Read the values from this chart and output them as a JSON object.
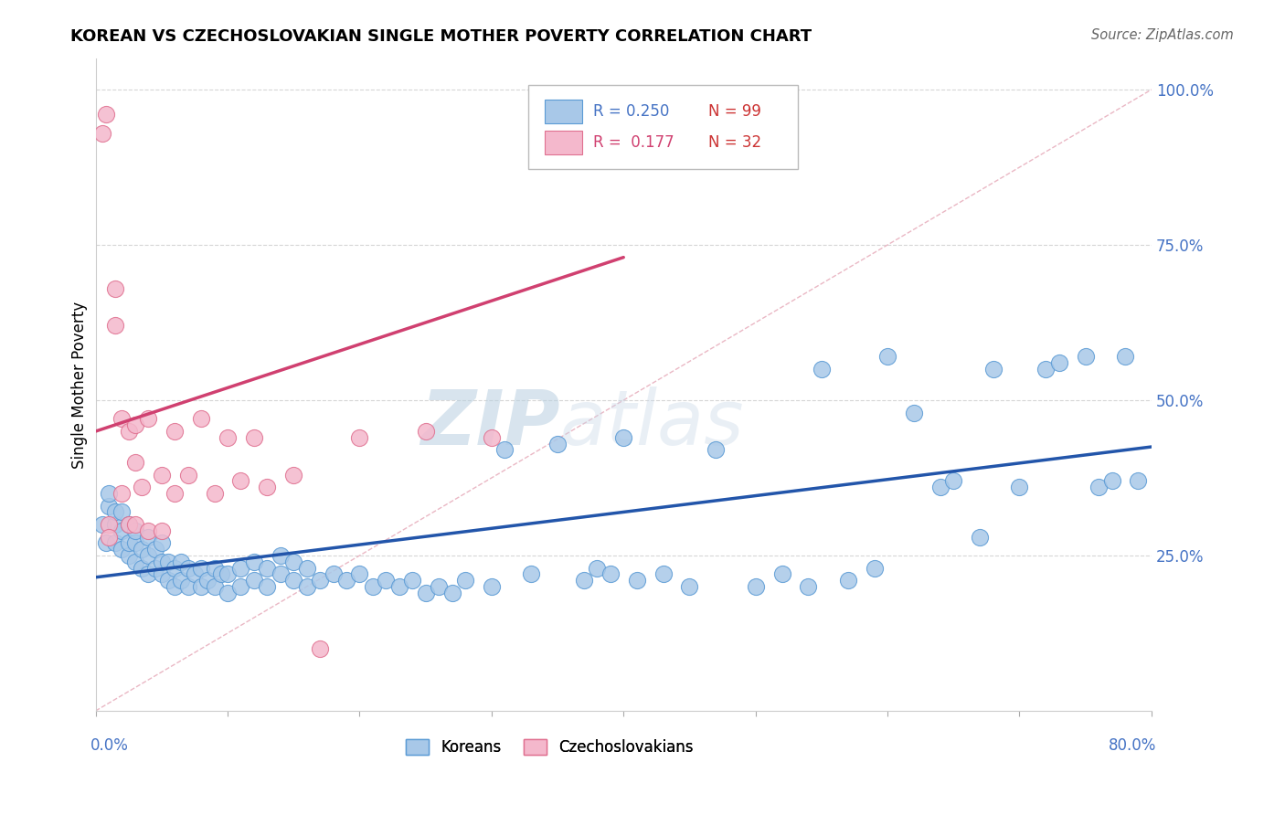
{
  "title": "KOREAN VS CZECHOSLOVAKIAN SINGLE MOTHER POVERTY CORRELATION CHART",
  "source": "Source: ZipAtlas.com",
  "ylabel": "Single Mother Poverty",
  "x_range": [
    0.0,
    0.8
  ],
  "y_range": [
    0.0,
    1.05
  ],
  "watermark_zip": "ZIP",
  "watermark_atlas": "atlas",
  "legend": {
    "korean_R": "0.250",
    "korean_N": "99",
    "czech_R": "0.177",
    "czech_N": "32",
    "korean_label": "Koreans",
    "czech_label": "Czechoslovakians"
  },
  "korean_color": "#a8c8e8",
  "korean_edge": "#5b9bd5",
  "czech_color": "#f4b8cc",
  "czech_edge": "#e07090",
  "diag_line_color": "#e8b0be",
  "korean_trend_color": "#2255aa",
  "czech_trend_color": "#d04070",
  "grid_color": "#cccccc",
  "y_tick_vals": [
    0.25,
    0.5,
    0.75,
    1.0
  ],
  "y_tick_labels": [
    "25.0%",
    "50.0%",
    "75.0%",
    "100.0%"
  ],
  "korean_x": [
    0.005,
    0.008,
    0.01,
    0.01,
    0.015,
    0.015,
    0.015,
    0.02,
    0.02,
    0.02,
    0.025,
    0.025,
    0.025,
    0.03,
    0.03,
    0.03,
    0.035,
    0.035,
    0.04,
    0.04,
    0.04,
    0.045,
    0.045,
    0.05,
    0.05,
    0.05,
    0.055,
    0.055,
    0.06,
    0.06,
    0.065,
    0.065,
    0.07,
    0.07,
    0.075,
    0.08,
    0.08,
    0.085,
    0.09,
    0.09,
    0.095,
    0.1,
    0.1,
    0.11,
    0.11,
    0.12,
    0.12,
    0.13,
    0.13,
    0.14,
    0.14,
    0.15,
    0.15,
    0.16,
    0.16,
    0.17,
    0.18,
    0.19,
    0.2,
    0.21,
    0.22,
    0.23,
    0.24,
    0.25,
    0.26,
    0.27,
    0.28,
    0.3,
    0.31,
    0.33,
    0.35,
    0.37,
    0.38,
    0.39,
    0.4,
    0.41,
    0.43,
    0.45,
    0.47,
    0.5,
    0.52,
    0.54,
    0.55,
    0.57,
    0.59,
    0.6,
    0.62,
    0.64,
    0.65,
    0.67,
    0.68,
    0.7,
    0.72,
    0.73,
    0.75,
    0.76,
    0.77,
    0.78,
    0.79
  ],
  "korean_y": [
    0.3,
    0.27,
    0.33,
    0.35,
    0.27,
    0.3,
    0.32,
    0.26,
    0.29,
    0.32,
    0.25,
    0.27,
    0.3,
    0.24,
    0.27,
    0.29,
    0.23,
    0.26,
    0.22,
    0.25,
    0.28,
    0.23,
    0.26,
    0.22,
    0.24,
    0.27,
    0.21,
    0.24,
    0.2,
    0.23,
    0.21,
    0.24,
    0.2,
    0.23,
    0.22,
    0.2,
    0.23,
    0.21,
    0.2,
    0.23,
    0.22,
    0.19,
    0.22,
    0.2,
    0.23,
    0.21,
    0.24,
    0.2,
    0.23,
    0.22,
    0.25,
    0.21,
    0.24,
    0.2,
    0.23,
    0.21,
    0.22,
    0.21,
    0.22,
    0.2,
    0.21,
    0.2,
    0.21,
    0.19,
    0.2,
    0.19,
    0.21,
    0.2,
    0.42,
    0.22,
    0.43,
    0.21,
    0.23,
    0.22,
    0.44,
    0.21,
    0.22,
    0.2,
    0.42,
    0.2,
    0.22,
    0.2,
    0.55,
    0.21,
    0.23,
    0.57,
    0.48,
    0.36,
    0.37,
    0.28,
    0.55,
    0.36,
    0.55,
    0.56,
    0.57,
    0.36,
    0.37,
    0.57,
    0.37
  ],
  "czech_x": [
    0.005,
    0.008,
    0.01,
    0.01,
    0.015,
    0.015,
    0.02,
    0.02,
    0.025,
    0.025,
    0.03,
    0.03,
    0.03,
    0.035,
    0.04,
    0.04,
    0.05,
    0.05,
    0.06,
    0.06,
    0.07,
    0.08,
    0.09,
    0.1,
    0.11,
    0.12,
    0.13,
    0.15,
    0.17,
    0.2,
    0.25,
    0.3
  ],
  "czech_y": [
    0.93,
    0.96,
    0.3,
    0.28,
    0.68,
    0.62,
    0.47,
    0.35,
    0.45,
    0.3,
    0.4,
    0.3,
    0.46,
    0.36,
    0.47,
    0.29,
    0.38,
    0.29,
    0.45,
    0.35,
    0.38,
    0.47,
    0.35,
    0.44,
    0.37,
    0.44,
    0.36,
    0.38,
    0.1,
    0.44,
    0.45,
    0.44
  ],
  "korean_trend_x": [
    0.0,
    0.8
  ],
  "korean_trend_y": [
    0.215,
    0.425
  ],
  "czech_trend_x": [
    0.0,
    0.4
  ],
  "czech_trend_y": [
    0.45,
    0.73
  ]
}
